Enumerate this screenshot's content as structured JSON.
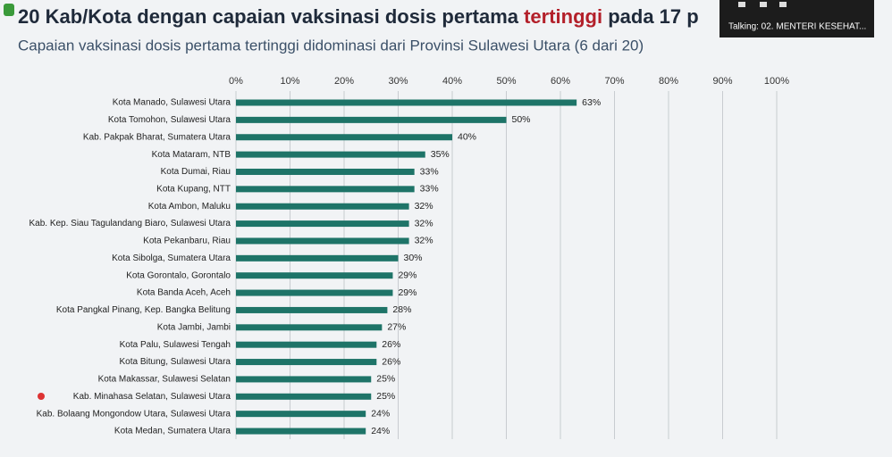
{
  "chart_data": {
    "type": "hbar",
    "title": [
      "20 Kab/Kota dengan capaian vaksinasi dosis pertama ",
      "tertinggi",
      " pada 17 p"
    ],
    "title_colors": [
      "#1f2a3a",
      "#b3202a",
      "#1f2a3a"
    ],
    "subtitle": "Capaian vaksinasi dosis pertama tertinggi didominasi dari Provinsi Sulawesi Utara (6 dari 20)",
    "categories": [
      "Kota Manado, Sulawesi Utara",
      "Kota Tomohon, Sulawesi Utara",
      "Kab. Pakpak Bharat, Sumatera Utara",
      "Kota Mataram, NTB",
      "Kota Dumai, Riau",
      "Kota Kupang, NTT",
      "Kota Ambon, Maluku",
      "Kab. Kep. Siau Tagulandang Biaro, Sulawesi Utara",
      "Kota Pekanbaru, Riau",
      "Kota Sibolga, Sumatera Utara",
      "Kota Gorontalo, Gorontalo",
      "Kota Banda Aceh, Aceh",
      "Kota Pangkal Pinang, Kep. Bangka Belitung",
      "Kota Jambi, Jambi",
      "Kota Palu, Sulawesi Tengah",
      "Kota Bitung, Sulawesi Utara",
      "Kota Makassar, Sulawesi Selatan",
      "Kab. Minahasa Selatan, Sulawesi Utara",
      "Kab. Bolaang Mongondow Utara, Sulawesi Utara",
      "Kota Medan, Sumatera Utara"
    ],
    "values": [
      63,
      50,
      40,
      35,
      33,
      33,
      32,
      32,
      32,
      30,
      29,
      29,
      28,
      27,
      26,
      26,
      25,
      25,
      24,
      24
    ],
    "value_labels": [
      "63%",
      "50%",
      "40%",
      "35%",
      "33%",
      "33%",
      "32%",
      "32%",
      "32%",
      "30%",
      "29%",
      "29%",
      "28%",
      "27%",
      "26%",
      "26%",
      "25%",
      "25%",
      "24%",
      "24%"
    ],
    "color": "#1e7468",
    "xlim": [
      0,
      100
    ],
    "xticks": [
      {
        "value": 0,
        "label": "0%"
      },
      {
        "value": 10,
        "label": "10%"
      },
      {
        "value": 20,
        "label": "20%"
      },
      {
        "value": 30,
        "label": "30%"
      },
      {
        "value": 40,
        "label": "40%"
      },
      {
        "value": 50,
        "label": "50%"
      },
      {
        "value": 60,
        "label": "60%"
      },
      {
        "value": 70,
        "label": "70%"
      },
      {
        "value": 80,
        "label": "80%"
      },
      {
        "value": 90,
        "label": "90%"
      },
      {
        "value": 100,
        "label": "100%"
      }
    ],
    "grid": true
  },
  "meeting": {
    "talking": "Talking: 02. MENTERI KESEHAT..."
  }
}
